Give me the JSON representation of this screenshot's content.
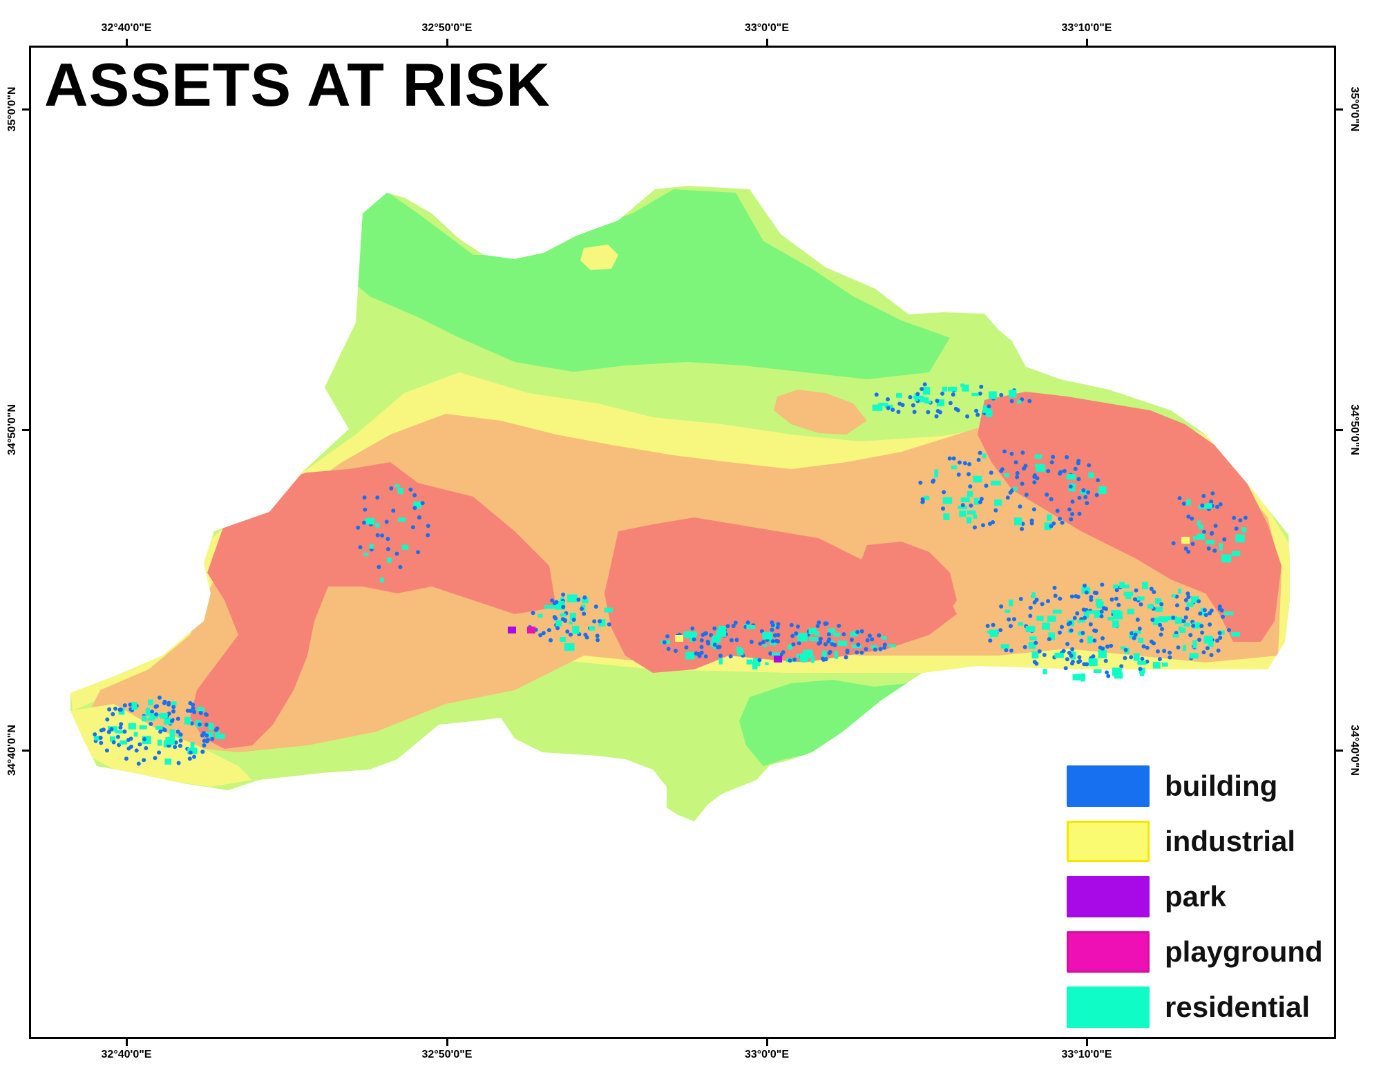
{
  "map": {
    "title": "ASSETS AT RISK",
    "longitude_ticks": [
      "32°40'0\"E",
      "32°50'0\"E",
      "33°0'0\"E",
      "33°10'0\"E"
    ],
    "latitude_ticks": [
      "35°0'0\"N",
      "34°50'0\"N",
      "34°40'0\"N"
    ],
    "hazard_colors": {
      "very_low": "#7cf57a",
      "low": "#c7f67c",
      "moderate": "#f7f77f",
      "high": "#f7bd7b",
      "very_high": "#f58477"
    },
    "legend": [
      {
        "label": "building",
        "color": "#1670f0",
        "border": "#1670f0"
      },
      {
        "label": "industrial",
        "color": "#fbfb72",
        "border": "#f4e800"
      },
      {
        "label": "park",
        "color": "#a70ae6",
        "border": "#a70ae6"
      },
      {
        "label": "playground",
        "color": "#ee10b4",
        "border": "#d6109e"
      },
      {
        "label": "residential",
        "color": "#10fcc7",
        "border": "#10fcc7"
      }
    ]
  }
}
